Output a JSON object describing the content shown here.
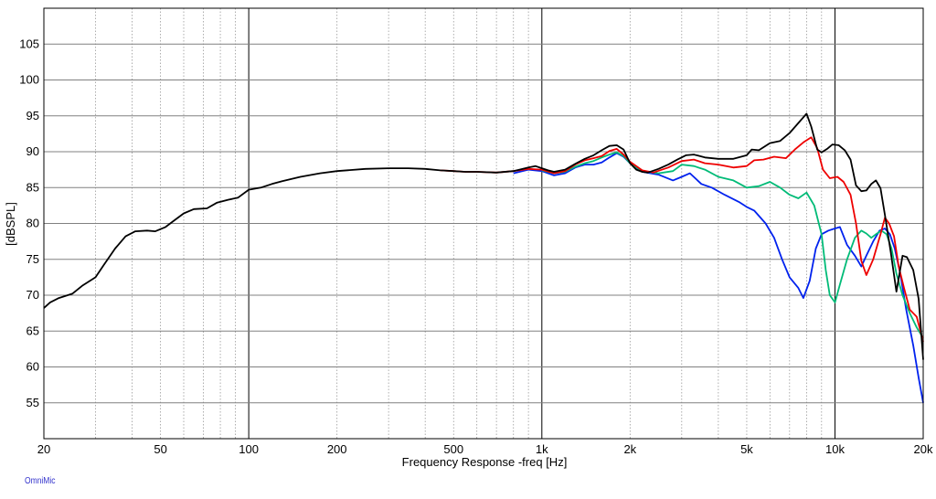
{
  "watermark": "OmniMic",
  "chart_data": {
    "type": "line",
    "title": "",
    "xlabel": "Frequency Response -freq [Hz]",
    "ylabel": "[dBSPL]",
    "xscale": "log",
    "xlim": [
      20,
      20000
    ],
    "ylim": [
      50,
      110
    ],
    "grid": true,
    "legend": "none",
    "yticks": [
      55,
      60,
      65,
      70,
      75,
      80,
      85,
      90,
      95,
      100,
      105
    ],
    "xticks": [
      {
        "value": 20,
        "label": "20"
      },
      {
        "value": 50,
        "label": "50"
      },
      {
        "value": 100,
        "label": "100"
      },
      {
        "value": 200,
        "label": "200"
      },
      {
        "value": 500,
        "label": "500"
      },
      {
        "value": 1000,
        "label": "1k"
      },
      {
        "value": 2000,
        "label": "2k"
      },
      {
        "value": 5000,
        "label": "5k"
      },
      {
        "value": 10000,
        "label": "10k"
      },
      {
        "value": 20000,
        "label": "20k"
      }
    ],
    "series": [
      {
        "color": "#000000",
        "points": [
          [
            20,
            68.2
          ],
          [
            21,
            69
          ],
          [
            22.5,
            69.6
          ],
          [
            25,
            70.2
          ],
          [
            27,
            71.3
          ],
          [
            30,
            72.5
          ],
          [
            32,
            74.2
          ],
          [
            35,
            76.5
          ],
          [
            38,
            78.2
          ],
          [
            41,
            78.9
          ],
          [
            45,
            79
          ],
          [
            48,
            78.9
          ],
          [
            52,
            79.5
          ],
          [
            56,
            80.5
          ],
          [
            60,
            81.4
          ],
          [
            65,
            82
          ],
          [
            72,
            82.1
          ],
          [
            78,
            82.9
          ],
          [
            85,
            83.3
          ],
          [
            92,
            83.6
          ],
          [
            100,
            84.7
          ],
          [
            110,
            85
          ],
          [
            120,
            85.5
          ],
          [
            130,
            85.9
          ],
          [
            150,
            86.5
          ],
          [
            175,
            87
          ],
          [
            200,
            87.3
          ],
          [
            250,
            87.6
          ],
          [
            300,
            87.7
          ],
          [
            350,
            87.7
          ],
          [
            400,
            87.6
          ],
          [
            450,
            87.4
          ],
          [
            500,
            87.3
          ],
          [
            550,
            87.2
          ],
          [
            600,
            87.2
          ],
          [
            700,
            87.1
          ],
          [
            800,
            87.3
          ],
          [
            900,
            87.8
          ],
          [
            950,
            88
          ],
          [
            1000,
            87.7
          ],
          [
            1050,
            87.4
          ],
          [
            1100,
            87.2
          ],
          [
            1200,
            87.5
          ],
          [
            1300,
            88.3
          ],
          [
            1400,
            89
          ],
          [
            1500,
            89.5
          ],
          [
            1600,
            90.2
          ],
          [
            1700,
            90.8
          ],
          [
            1800,
            90.9
          ],
          [
            1900,
            90.3
          ],
          [
            2000,
            88.4
          ],
          [
            2100,
            87.5
          ],
          [
            2200,
            87.2
          ],
          [
            2300,
            87.1
          ],
          [
            2500,
            87.6
          ],
          [
            2700,
            88.2
          ],
          [
            2900,
            88.9
          ],
          [
            3100,
            89.5
          ],
          [
            3300,
            89.6
          ],
          [
            3600,
            89.2
          ],
          [
            4000,
            89
          ],
          [
            4500,
            89
          ],
          [
            5000,
            89.5
          ],
          [
            5200,
            90.3
          ],
          [
            5500,
            90.2
          ],
          [
            6000,
            91.2
          ],
          [
            6500,
            91.5
          ],
          [
            7000,
            92.6
          ],
          [
            7500,
            94
          ],
          [
            8000,
            95.3
          ],
          [
            8300,
            93.5
          ],
          [
            8700,
            90.3
          ],
          [
            9000,
            89.9
          ],
          [
            9400,
            90.4
          ],
          [
            9800,
            91
          ],
          [
            10300,
            90.9
          ],
          [
            10800,
            90.2
          ],
          [
            11300,
            88.9
          ],
          [
            11800,
            85.3
          ],
          [
            12300,
            84.5
          ],
          [
            12800,
            84.6
          ],
          [
            13300,
            85.5
          ],
          [
            13800,
            86
          ],
          [
            14300,
            84.9
          ],
          [
            14800,
            81.2
          ],
          [
            15500,
            76
          ],
          [
            16200,
            70.5
          ],
          [
            17000,
            75.5
          ],
          [
            17600,
            75.3
          ],
          [
            18500,
            73.5
          ],
          [
            19300,
            69.5
          ],
          [
            20000,
            61
          ]
        ]
      },
      {
        "color": "#ee0000",
        "points": [
          [
            450,
            87.4
          ],
          [
            500,
            87.3
          ],
          [
            550,
            87.2
          ],
          [
            600,
            87.2
          ],
          [
            700,
            87.1
          ],
          [
            800,
            87.3
          ],
          [
            900,
            87.6
          ],
          [
            1000,
            87.5
          ],
          [
            1100,
            87
          ],
          [
            1200,
            87.3
          ],
          [
            1300,
            88.2
          ],
          [
            1400,
            88.8
          ],
          [
            1500,
            89.1
          ],
          [
            1600,
            89.4
          ],
          [
            1700,
            90.1
          ],
          [
            1800,
            90.4
          ],
          [
            1900,
            89.6
          ],
          [
            2000,
            88.6
          ],
          [
            2200,
            87.4
          ],
          [
            2400,
            87.1
          ],
          [
            2700,
            87.8
          ],
          [
            3000,
            88.7
          ],
          [
            3300,
            88.9
          ],
          [
            3600,
            88.4
          ],
          [
            4000,
            88.2
          ],
          [
            4500,
            87.8
          ],
          [
            5000,
            88
          ],
          [
            5300,
            88.8
          ],
          [
            5700,
            88.9
          ],
          [
            6200,
            89.3
          ],
          [
            6800,
            89.1
          ],
          [
            7300,
            90.3
          ],
          [
            7800,
            91.3
          ],
          [
            8300,
            92
          ],
          [
            8700,
            90.5
          ],
          [
            9100,
            87.5
          ],
          [
            9600,
            86.3
          ],
          [
            10200,
            86.5
          ],
          [
            10700,
            85.8
          ],
          [
            11300,
            84
          ],
          [
            11800,
            80
          ],
          [
            12300,
            74.8
          ],
          [
            12800,
            72.8
          ],
          [
            13500,
            75
          ],
          [
            14300,
            78.5
          ],
          [
            14800,
            80.8
          ],
          [
            15300,
            80
          ],
          [
            15900,
            78.2
          ],
          [
            16500,
            74
          ],
          [
            17200,
            71
          ],
          [
            18000,
            68
          ],
          [
            19000,
            67
          ],
          [
            20000,
            63.5
          ]
        ]
      },
      {
        "color": "#00bb77",
        "points": [
          [
            1000,
            87.4
          ],
          [
            1100,
            87
          ],
          [
            1200,
            87.2
          ],
          [
            1300,
            87.9
          ],
          [
            1400,
            88.4
          ],
          [
            1500,
            88.7
          ],
          [
            1600,
            89.2
          ],
          [
            1700,
            89.6
          ],
          [
            1800,
            89.9
          ],
          [
            1900,
            89.4
          ],
          [
            2000,
            88.4
          ],
          [
            2200,
            87.3
          ],
          [
            2500,
            87
          ],
          [
            2800,
            87.3
          ],
          [
            3000,
            88.2
          ],
          [
            3300,
            88
          ],
          [
            3600,
            87.5
          ],
          [
            4000,
            86.5
          ],
          [
            4500,
            86
          ],
          [
            5000,
            85
          ],
          [
            5500,
            85.2
          ],
          [
            6000,
            85.8
          ],
          [
            6500,
            85
          ],
          [
            7000,
            84
          ],
          [
            7500,
            83.5
          ],
          [
            8000,
            84.3
          ],
          [
            8500,
            82.5
          ],
          [
            9000,
            78.5
          ],
          [
            9300,
            73.5
          ],
          [
            9600,
            70
          ],
          [
            10000,
            69
          ],
          [
            10400,
            71.5
          ],
          [
            11000,
            75
          ],
          [
            11700,
            78
          ],
          [
            12300,
            79
          ],
          [
            12800,
            78.6
          ],
          [
            13300,
            78
          ],
          [
            13800,
            78.5
          ],
          [
            14400,
            79
          ],
          [
            15000,
            78.5
          ],
          [
            15600,
            76.5
          ],
          [
            16200,
            73
          ],
          [
            17000,
            70
          ],
          [
            18000,
            67.5
          ],
          [
            19000,
            65.5
          ],
          [
            20000,
            64
          ]
        ]
      },
      {
        "color": "#0022ee",
        "points": [
          [
            800,
            87
          ],
          [
            900,
            87.5
          ],
          [
            1000,
            87.3
          ],
          [
            1100,
            86.7
          ],
          [
            1200,
            87
          ],
          [
            1300,
            87.8
          ],
          [
            1400,
            88.2
          ],
          [
            1500,
            88.2
          ],
          [
            1600,
            88.5
          ],
          [
            1700,
            89.2
          ],
          [
            1800,
            89.8
          ],
          [
            1900,
            89.3
          ],
          [
            2000,
            88.4
          ],
          [
            2200,
            87.2
          ],
          [
            2500,
            86.8
          ],
          [
            2800,
            86
          ],
          [
            3000,
            86.5
          ],
          [
            3200,
            87
          ],
          [
            3500,
            85.5
          ],
          [
            3800,
            85
          ],
          [
            4200,
            84
          ],
          [
            4700,
            83
          ],
          [
            5000,
            82.3
          ],
          [
            5300,
            81.8
          ],
          [
            5800,
            80
          ],
          [
            6200,
            78
          ],
          [
            6600,
            75
          ],
          [
            7000,
            72.5
          ],
          [
            7500,
            71
          ],
          [
            7800,
            69.6
          ],
          [
            8200,
            72
          ],
          [
            8600,
            76.5
          ],
          [
            9000,
            78.5
          ],
          [
            9500,
            79
          ],
          [
            10000,
            79.3
          ],
          [
            10400,
            79.5
          ],
          [
            11000,
            77
          ],
          [
            11700,
            75.5
          ],
          [
            12300,
            74
          ],
          [
            12800,
            75.5
          ],
          [
            13500,
            77.5
          ],
          [
            14200,
            79
          ],
          [
            14800,
            79.3
          ],
          [
            15400,
            78.5
          ],
          [
            16000,
            76.5
          ],
          [
            16700,
            73
          ],
          [
            17500,
            68
          ],
          [
            18500,
            63
          ],
          [
            19300,
            58.5
          ],
          [
            20000,
            55
          ]
        ]
      }
    ]
  }
}
